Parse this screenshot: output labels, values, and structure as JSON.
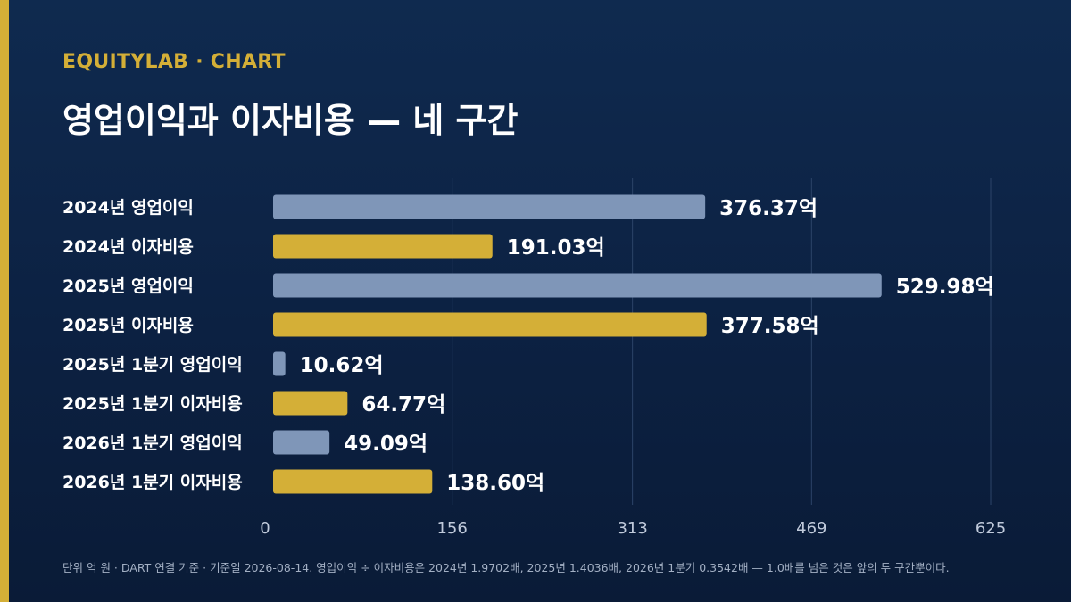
{
  "header": {
    "brand": "EQUITYLAB · CHART",
    "title": "영업이익과 이자비용 — 네 구간"
  },
  "footnote": "단위 억 원 · DART 연결 기준 · 기준일 2026-08-14. 영업이익 ÷ 이자비용은 2024년 1.9702배, 2025년 1.4036배, 2026년 1분기 0.3542배 — 1.0배를 넘은 것은 앞의 두 구간뿐이다.",
  "colors": {
    "accent": "#d4af37",
    "operating_income": "#7f96b8",
    "interest_expense": "#d4af37",
    "gridline": "#2c4468",
    "label_text": "#ffffff",
    "tick_text": "#c0cadb"
  },
  "chart_data": {
    "type": "bar",
    "orientation": "horizontal",
    "categories": [
      "2024년 영업이익",
      "2024년 이자비용",
      "2025년 영업이익",
      "2025년 이자비용",
      "2025년 1분기 영업이익",
      "2025년 1분기 이자비용",
      "2026년 1분기 영업이익",
      "2026년 1분기 이자비용"
    ],
    "values": [
      376.37,
      191.03,
      529.98,
      377.58,
      10.62,
      64.77,
      49.09,
      138.6
    ],
    "value_labels": [
      "376.37억",
      "191.03억",
      "529.98억",
      "377.58억",
      "10.62억",
      "64.77억",
      "49.09억",
      "138.60억"
    ],
    "bar_kinds": [
      "operating_income",
      "interest_expense",
      "operating_income",
      "interest_expense",
      "operating_income",
      "interest_expense",
      "operating_income",
      "interest_expense"
    ],
    "xlim": [
      0,
      625
    ],
    "xticks": [
      0,
      156,
      313,
      469,
      625
    ],
    "xtick_labels": [
      "0",
      "156",
      "313",
      "469",
      "625"
    ],
    "grid": true,
    "legend": "none"
  }
}
